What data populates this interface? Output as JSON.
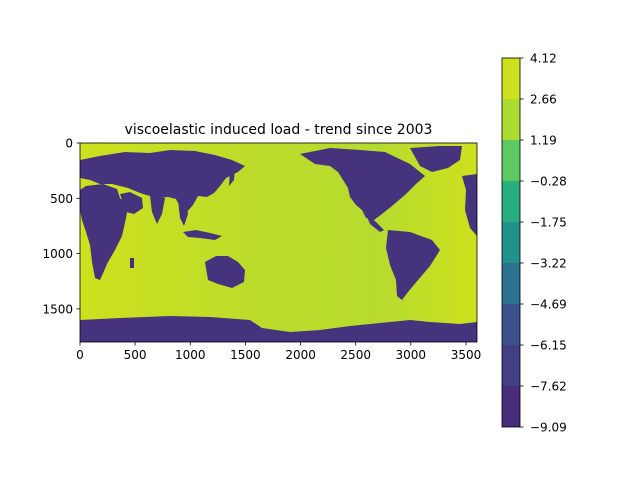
{
  "chart_data": {
    "type": "heatmap",
    "title": "viscoelastic induced load - trend since 2003",
    "xlabel": "",
    "ylabel": "",
    "xlim": [
      0,
      3600
    ],
    "ylim": [
      1800,
      0
    ],
    "x_ticks": [
      0,
      500,
      1000,
      1500,
      2000,
      2500,
      3000,
      3500
    ],
    "x_tick_labels": [
      "0",
      "500",
      "1000",
      "1500",
      "2000",
      "2500",
      "3000",
      "3500"
    ],
    "y_ticks": [
      0,
      500,
      1000,
      1500
    ],
    "y_tick_labels": [
      "0",
      "500",
      "1000",
      "1500"
    ],
    "colorbar": {
      "levels": [
        -9.09,
        -7.62,
        -6.15,
        -4.69,
        -3.22,
        -1.75,
        -0.28,
        1.19,
        2.66,
        4.12
      ],
      "tick_labels": [
        "4.12",
        "2.66",
        "1.19",
        "−0.28",
        "−1.75",
        "−3.22",
        "−4.69",
        "−6.15",
        "−7.62",
        "−9.09"
      ],
      "colors": [
        "#472d7b",
        "#433e85",
        "#3b528b",
        "#2c728e",
        "#21918c",
        "#28ae80",
        "#5ec962",
        "#addc30",
        "#cde11d"
      ],
      "colormap": "viridis"
    },
    "field_summary": {
      "ocean_value_approx": 3.5,
      "land_value_approx": -8.5,
      "ocean_color": "#c2df23",
      "land_color": "#46337e"
    }
  }
}
